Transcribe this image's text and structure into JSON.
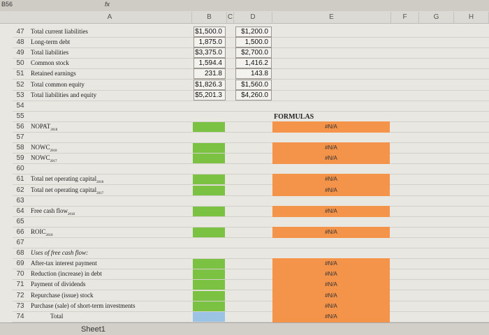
{
  "name_box": "B56",
  "fx": "fx",
  "columns": [
    "A",
    "B",
    "C",
    "D",
    "E",
    "F",
    "G",
    "H"
  ],
  "formulas_header": "FORMULAS",
  "sheet_tab": "Sheet1",
  "rows": [
    {
      "n": "47",
      "label": "Total current liabilities",
      "b": "$1,500.0",
      "d": "$1,200.0"
    },
    {
      "n": "48",
      "label": "Long-term debt",
      "b": "1,875.0",
      "d": "1,500.0"
    },
    {
      "n": "49",
      "label": "Total liabilities",
      "b": "$3,375.0",
      "d": "$2,700.0"
    },
    {
      "n": "50",
      "label": "Common stock",
      "b": "1,594.4",
      "d": "1,416.2"
    },
    {
      "n": "51",
      "label": "Retained earnings",
      "b": "231.8",
      "d": "143.8"
    },
    {
      "n": "52",
      "label": "Total common equity",
      "b": "$1,826.3",
      "d": "$1,560.0"
    },
    {
      "n": "53",
      "label": "Total liabilities and equity",
      "b": "$5,201.3",
      "d": "$4,260.0"
    },
    {
      "n": "54"
    },
    {
      "n": "55"
    },
    {
      "n": "56",
      "label": "NOPAT",
      "sub": "2018",
      "b_fill": "#7cc242",
      "e": "#N/A",
      "e_fill": "#f4934a"
    },
    {
      "n": "57"
    },
    {
      "n": "58",
      "label": "NOWC",
      "sub": "2018",
      "b_fill": "#7cc242",
      "e": "#N/A",
      "e_fill": "#f4934a"
    },
    {
      "n": "59",
      "label": "NOWC",
      "sub": "2017",
      "b_fill": "#7cc242",
      "e": "#N/A",
      "e_fill": "#f4934a"
    },
    {
      "n": "60"
    },
    {
      "n": "61",
      "label": "Total net operating capital",
      "sub": "2018",
      "b_fill": "#7cc242",
      "e": "#N/A",
      "e_fill": "#f4934a"
    },
    {
      "n": "62",
      "label": "Total net operating capital",
      "sub": "2017",
      "b_fill": "#7cc242",
      "e": "#N/A",
      "e_fill": "#f4934a"
    },
    {
      "n": "63"
    },
    {
      "n": "64",
      "label": "Free cash flow",
      "sub": "2018",
      "b_fill": "#7cc242",
      "e": "#N/A",
      "e_fill": "#f4934a"
    },
    {
      "n": "65"
    },
    {
      "n": "66",
      "label": "ROIC",
      "sub": "2018",
      "b_fill": "#7cc242",
      "e": "#N/A",
      "e_fill": "#f4934a"
    },
    {
      "n": "67"
    },
    {
      "n": "68",
      "label": "Uses of free cash flow:",
      "italic": true
    },
    {
      "n": "69",
      "label": "After-tax interest payment",
      "b_fill": "#7cc242",
      "e": "#N/A",
      "e_fill": "#f4934a"
    },
    {
      "n": "70",
      "label": "Reduction (increase) in debt",
      "b_fill": "#7cc242",
      "e": "#N/A",
      "e_fill": "#f4934a"
    },
    {
      "n": "71",
      "label": "Payment of dividends",
      "b_fill": "#7cc242",
      "e": "#N/A",
      "e_fill": "#f4934a"
    },
    {
      "n": "72",
      "label": "Repurchase (issue) stock",
      "b_fill": "#7cc242",
      "e": "#N/A",
      "e_fill": "#f4934a"
    },
    {
      "n": "73",
      "label": "Purchase (sale) of short-term investments",
      "b_fill": "#7cc242",
      "e": "#N/A",
      "e_fill": "#f4934a"
    },
    {
      "n": "74",
      "label": "Total",
      "indent": true,
      "b_fill": "#9cc3e4",
      "e": "#N/A",
      "e_fill": "#f4934a"
    }
  ]
}
